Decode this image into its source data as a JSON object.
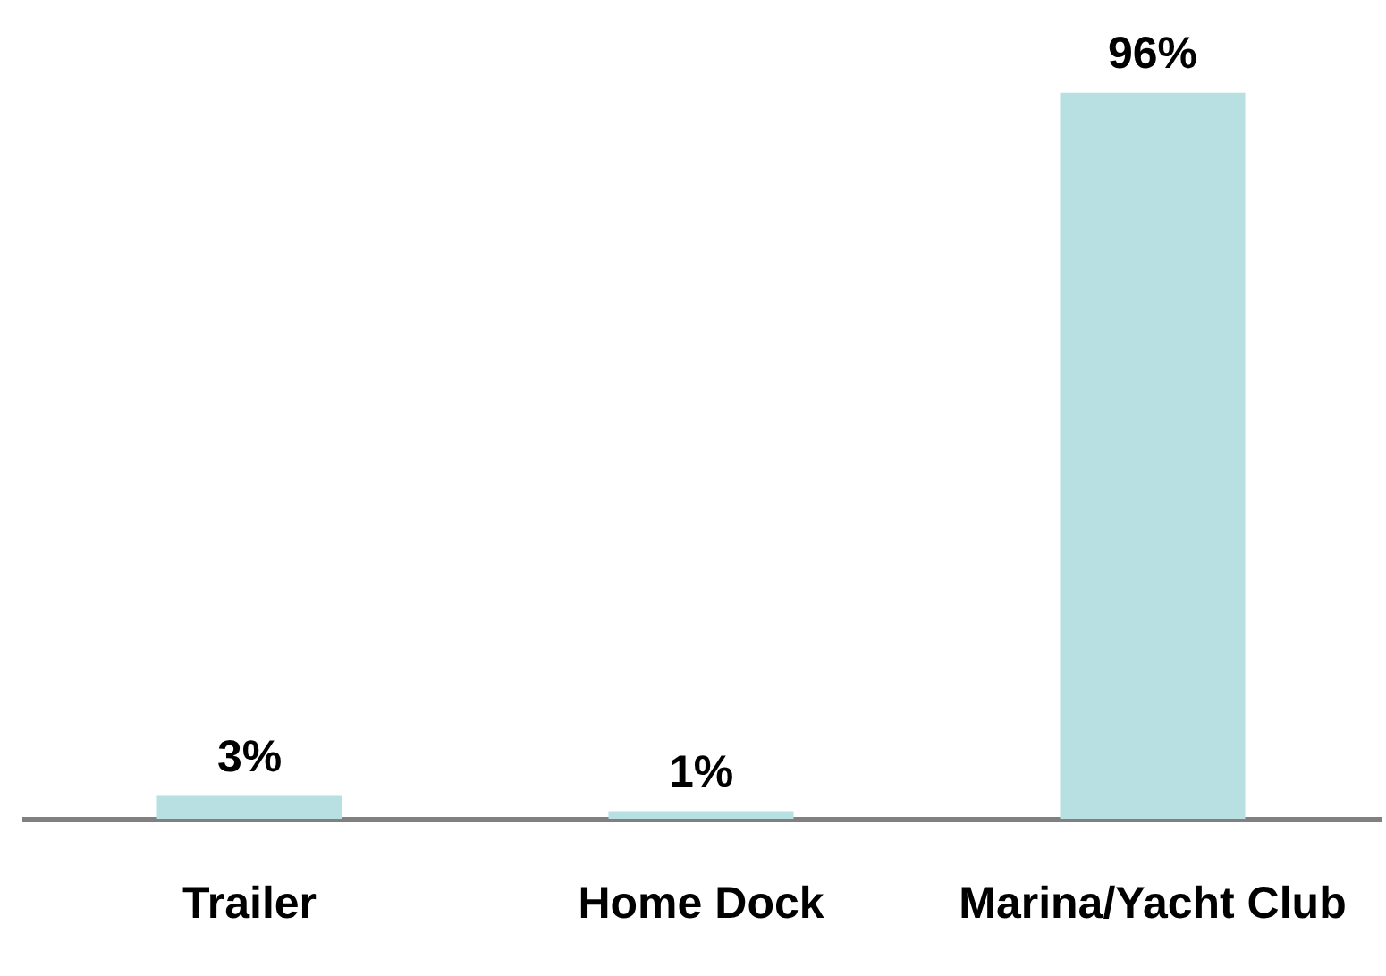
{
  "chart_data": {
    "type": "bar",
    "categories": [
      "Trailer",
      "Home Dock",
      "Marina/Yacht Club"
    ],
    "values": [
      3,
      1,
      96
    ],
    "color": "#b8dfe2",
    "value_labels": [
      "3%",
      "1%",
      "96%"
    ],
    "tick_labels": "x"
  }
}
